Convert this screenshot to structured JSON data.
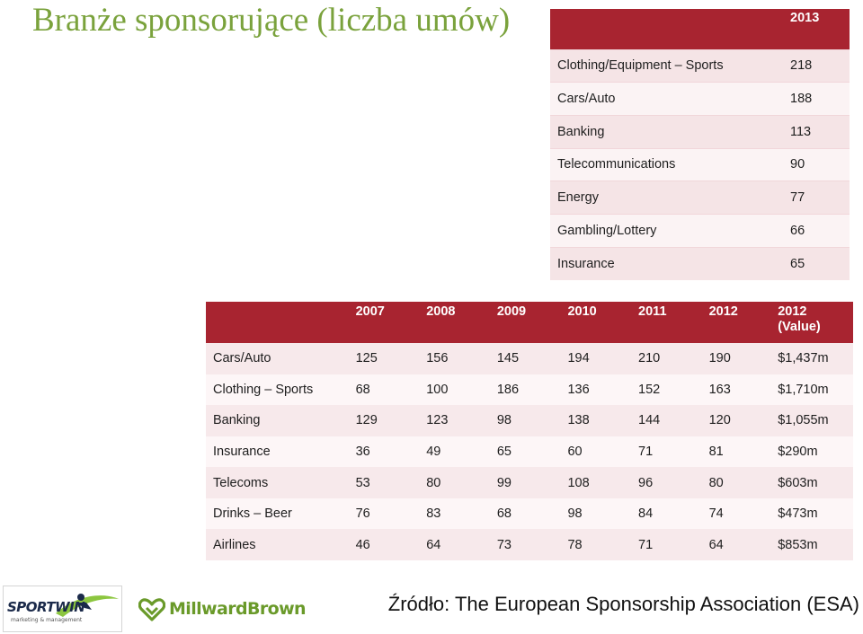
{
  "title": "Branże sponsorujące (liczba umów)",
  "table2013": {
    "header": "2013",
    "rows": [
      {
        "name": "Clothing/Equipment  – Sports",
        "value": "218"
      },
      {
        "name": "Cars/Auto",
        "value": "188"
      },
      {
        "name": "Banking",
        "value": "113"
      },
      {
        "name": "Telecommunications",
        "value": "90"
      },
      {
        "name": "Energy",
        "value": "77"
      },
      {
        "name": "Gambling/Lottery",
        "value": "66"
      },
      {
        "name": "Insurance",
        "value": "65"
      }
    ]
  },
  "table_hist": {
    "headers": [
      "2007",
      "2008",
      "2009",
      "2010",
      "2011",
      "2012",
      "2012 (Value)"
    ],
    "rows": [
      {
        "name": "Cars/Auto",
        "cells": [
          "125",
          "156",
          "145",
          "194",
          "210",
          "190",
          "$1,437m"
        ]
      },
      {
        "name": "Clothing – Sports",
        "cells": [
          "68",
          "100",
          "186",
          "136",
          "152",
          "163",
          "$1,710m"
        ]
      },
      {
        "name": "Banking",
        "cells": [
          "129",
          "123",
          "98",
          "138",
          "144",
          "120",
          "$1,055m"
        ]
      },
      {
        "name": "Insurance",
        "cells": [
          "36",
          "49",
          "65",
          "60",
          "71",
          "81",
          "$290m"
        ]
      },
      {
        "name": "Telecoms",
        "cells": [
          "53",
          "80",
          "99",
          "108",
          "96",
          "80",
          "$603m"
        ]
      },
      {
        "name": "Drinks – Beer",
        "cells": [
          "76",
          "83",
          "68",
          "98",
          "84",
          "74",
          "$473m"
        ]
      },
      {
        "name": "Airlines",
        "cells": [
          "46",
          "64",
          "73",
          "78",
          "71",
          "64",
          "$853m"
        ]
      }
    ]
  },
  "source": "Źródło: The European Sponsorship Association (ESA)",
  "logos": {
    "sportwin_text": "SPORTWIN",
    "sportwin_tagline": "marketing & management",
    "millwardbrown_text": "MillwardBrown"
  },
  "colors": {
    "title_green": "#7aa23c",
    "header_red": "#a82430",
    "row_pink": "#f5e4e6"
  }
}
